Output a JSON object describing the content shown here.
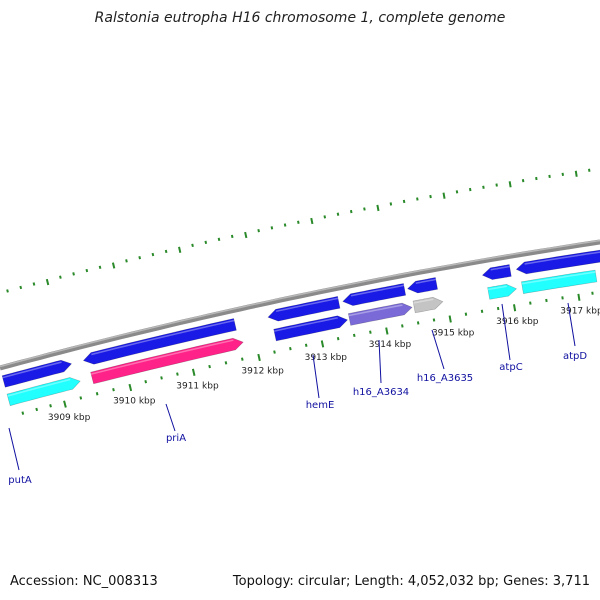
{
  "title": "Ralstonia eutropha H16 chromosome 1, complete genome",
  "footer": {
    "accession": "Accession: NC_008313",
    "summary": "Topology: circular; Length: 4,052,032 bp; Genes: 3,711"
  },
  "colors": {
    "backbone": "#8a8a8a",
    "tick": "#2a8a2a",
    "gene_blue": "#1a1ae6",
    "gene_cyan": "#22ffff",
    "gene_pink": "#ff2288",
    "gene_purple": "#7a6ad8",
    "gene_gray": "#c4c4c4",
    "label": "#1010a0"
  },
  "ticks": [
    {
      "label": "3909 kbp"
    },
    {
      "label": "3910 kbp"
    },
    {
      "label": "3911 kbp"
    },
    {
      "label": "3912 kbp"
    },
    {
      "label": "3913 kbp"
    },
    {
      "label": "3914 kbp"
    },
    {
      "label": "3915 kbp"
    },
    {
      "label": "3916 kbp"
    },
    {
      "label": "3917 kbp"
    }
  ],
  "genes": [
    {
      "name": "putA",
      "color": "gene_blue",
      "strand": "forward"
    },
    {
      "name": "putA",
      "color": "gene_cyan",
      "strand": "forward"
    },
    {
      "name": "priA",
      "color": "gene_blue",
      "strand": "reverse"
    },
    {
      "name": "priA",
      "color": "gene_pink",
      "strand": "forward"
    },
    {
      "name": "hemE",
      "color": "gene_blue",
      "strand": "reverse"
    },
    {
      "name": "hemE",
      "color": "gene_blue",
      "strand": "forward"
    },
    {
      "name": "h16_A3634",
      "color": "gene_blue",
      "strand": "reverse"
    },
    {
      "name": "h16_A3634",
      "color": "gene_purple",
      "strand": "forward"
    },
    {
      "name": "h16_A3635",
      "color": "gene_blue",
      "strand": "reverse"
    },
    {
      "name": "h16_A3635",
      "color": "gene_gray",
      "strand": "forward"
    },
    {
      "name": "atpC",
      "color": "gene_blue",
      "strand": "reverse"
    },
    {
      "name": "atpC",
      "color": "gene_cyan",
      "strand": "forward"
    },
    {
      "name": "atpD",
      "color": "gene_blue",
      "strand": "reverse"
    },
    {
      "name": "atpD",
      "color": "gene_cyan",
      "strand": "forward"
    }
  ],
  "labels": [
    {
      "text": "putA"
    },
    {
      "text": "priA"
    },
    {
      "text": "hemE"
    },
    {
      "text": "h16_A3634"
    },
    {
      "text": "h16_A3635"
    },
    {
      "text": "atpC"
    },
    {
      "text": "atpD"
    }
  ]
}
